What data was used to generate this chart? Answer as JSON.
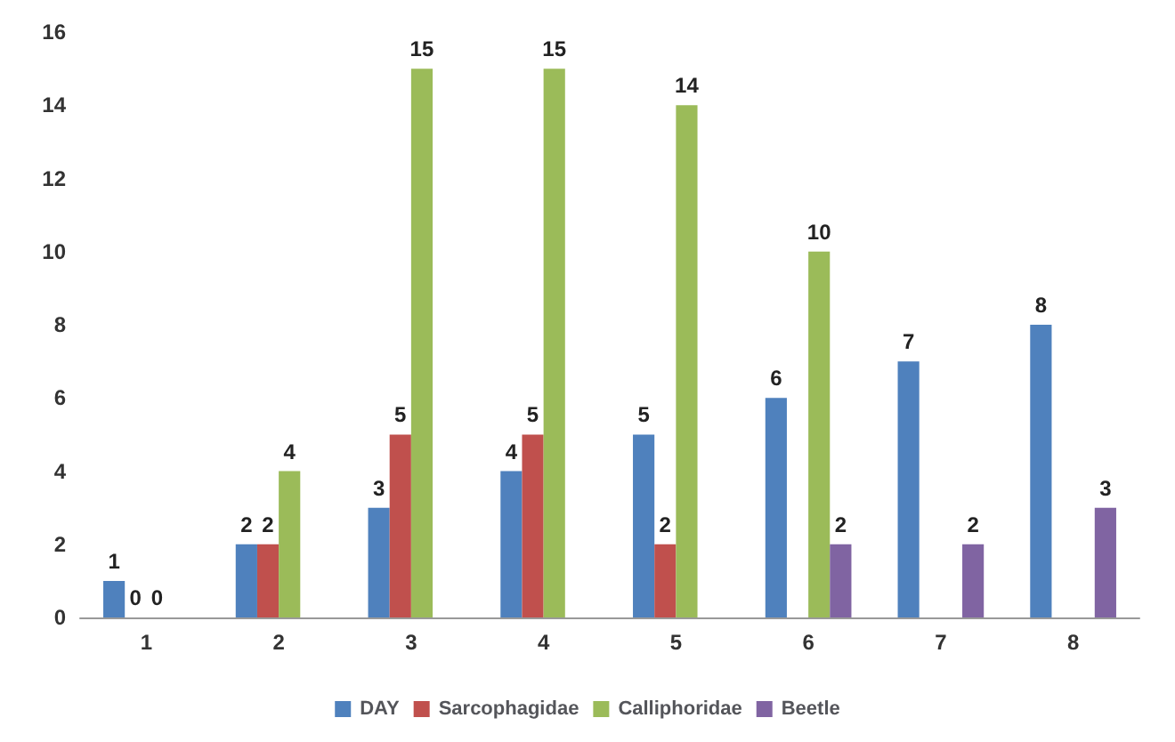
{
  "chart_data": {
    "type": "bar",
    "categories": [
      "1",
      "2",
      "3",
      "4",
      "5",
      "6",
      "7",
      "8"
    ],
    "series": [
      {
        "name": "DAY",
        "color": "#4f81bd",
        "values": [
          1,
          2,
          3,
          4,
          5,
          6,
          7,
          8
        ]
      },
      {
        "name": "Sarcophagidae",
        "color": "#c0504d",
        "values": [
          0,
          2,
          5,
          5,
          2,
          null,
          null,
          null
        ]
      },
      {
        "name": "Calliphoridae",
        "color": "#9bbb59",
        "values": [
          0,
          4,
          15,
          15,
          14,
          10,
          null,
          null
        ]
      },
      {
        "name": "Beetle",
        "color": "#8064a2",
        "values": [
          null,
          null,
          null,
          null,
          null,
          2,
          2,
          3
        ]
      }
    ],
    "ylim": [
      0,
      16
    ],
    "yticks": [
      0,
      2,
      4,
      6,
      8,
      10,
      12,
      14,
      16
    ],
    "grid": false,
    "legend": "bottom",
    "data_labels": true
  }
}
